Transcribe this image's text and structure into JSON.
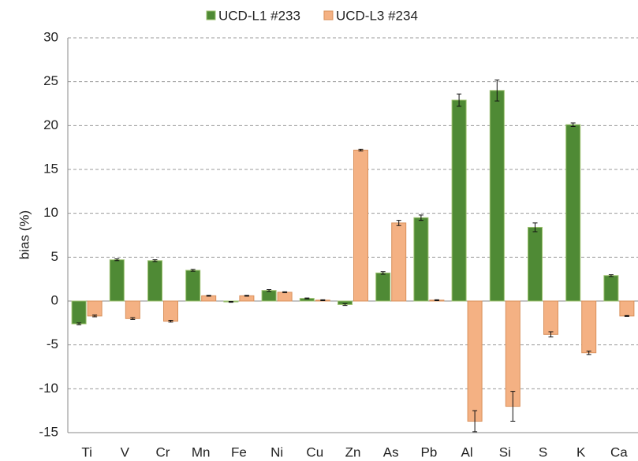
{
  "chart_data": {
    "type": "bar",
    "y_label": "bias (%)",
    "categories": [
      "Ti",
      "V",
      "Cr",
      "Mn",
      "Fe",
      "Ni",
      "Cu",
      "Zn",
      "As",
      "Pb",
      "Al",
      "Si",
      "S",
      "K",
      "Ca"
    ],
    "series": [
      {
        "name": "UCD-L1 #233",
        "color": "#4f8a35",
        "border": "#9dc26f",
        "values": [
          -2.6,
          4.7,
          4.6,
          3.5,
          -0.1,
          1.2,
          0.3,
          -0.4,
          3.2,
          9.5,
          22.9,
          24.0,
          8.4,
          20.1,
          2.9
        ],
        "errors": [
          0.1,
          0.1,
          0.1,
          0.1,
          0.05,
          0.1,
          0.05,
          0.1,
          0.15,
          0.3,
          0.7,
          1.2,
          0.5,
          0.2,
          0.1
        ]
      },
      {
        "name": "UCD-L3 #234",
        "color": "#f4b183",
        "border": "#d9905a",
        "values": [
          -1.7,
          -2.0,
          -2.3,
          0.6,
          0.6,
          1.0,
          0.1,
          17.2,
          8.9,
          0.1,
          -13.7,
          -12.0,
          -3.8,
          -5.9,
          -1.7
        ],
        "errors": [
          0.1,
          0.1,
          0.1,
          0.05,
          0.05,
          0.05,
          0.05,
          0.1,
          0.3,
          0.05,
          1.2,
          1.7,
          0.3,
          0.2,
          0.05
        ]
      }
    ],
    "ylim": [
      -15,
      30
    ],
    "yticks": [
      -15,
      -10,
      -5,
      0,
      5,
      10,
      15,
      20,
      25,
      30
    ],
    "grid": true
  }
}
